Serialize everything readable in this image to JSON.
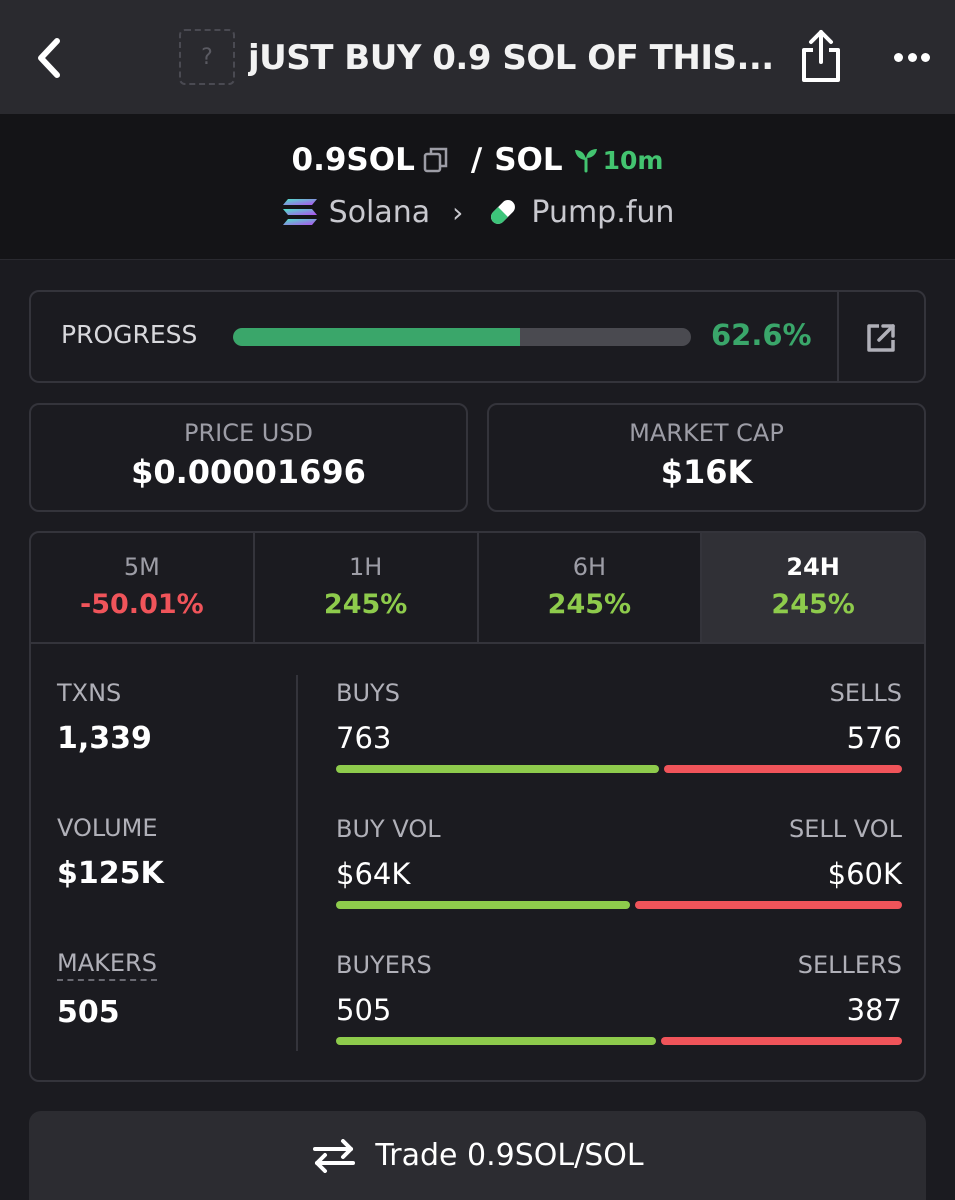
{
  "header": {
    "title": "jUST BUY 0.9 SOL OF THIS...",
    "token_placeholder": "?"
  },
  "pair": {
    "base": "0.9SOL",
    "quote": "SOL",
    "age": "10m",
    "chain": "Solana",
    "dex": "Pump.fun"
  },
  "progress": {
    "label": "PROGRESS",
    "value_text": "62.6%",
    "fraction": 0.626
  },
  "price_usd": {
    "label": "PRICE USD",
    "value": "$0.00001696"
  },
  "market_cap": {
    "label": "MARKET CAP",
    "value": "$16K"
  },
  "tabs": [
    {
      "label": "5M",
      "change": "-50.01%",
      "direction": "neg"
    },
    {
      "label": "1H",
      "change": "245%",
      "direction": "pos"
    },
    {
      "label": "6H",
      "change": "245%",
      "direction": "pos"
    },
    {
      "label": "24H",
      "change": "245%",
      "direction": "pos",
      "active": true
    }
  ],
  "summary": {
    "txns": {
      "label": "TXNS",
      "value": "1,339"
    },
    "volume": {
      "label": "VOLUME",
      "value": "$125K"
    },
    "makers": {
      "label": "MAKERS",
      "value": "505"
    }
  },
  "breakdown": {
    "buys": {
      "left_label": "BUYS",
      "left_value": "763",
      "right_label": "SELLS",
      "right_value": "576",
      "buy_fraction": 0.57
    },
    "vol": {
      "left_label": "BUY VOL",
      "left_value": "$64K",
      "right_label": "SELL VOL",
      "right_value": "$60K",
      "buy_fraction": 0.52
    },
    "buyers": {
      "left_label": "BUYERS",
      "left_value": "505",
      "right_label": "SELLERS",
      "right_value": "387",
      "buy_fraction": 0.566
    }
  },
  "trade_button": {
    "label": "Trade 0.9SOL/SOL"
  },
  "colors": {
    "positive": "#8ecb4c",
    "negative": "#f0545a",
    "progress": "#3aa66a",
    "age": "#43c470"
  }
}
